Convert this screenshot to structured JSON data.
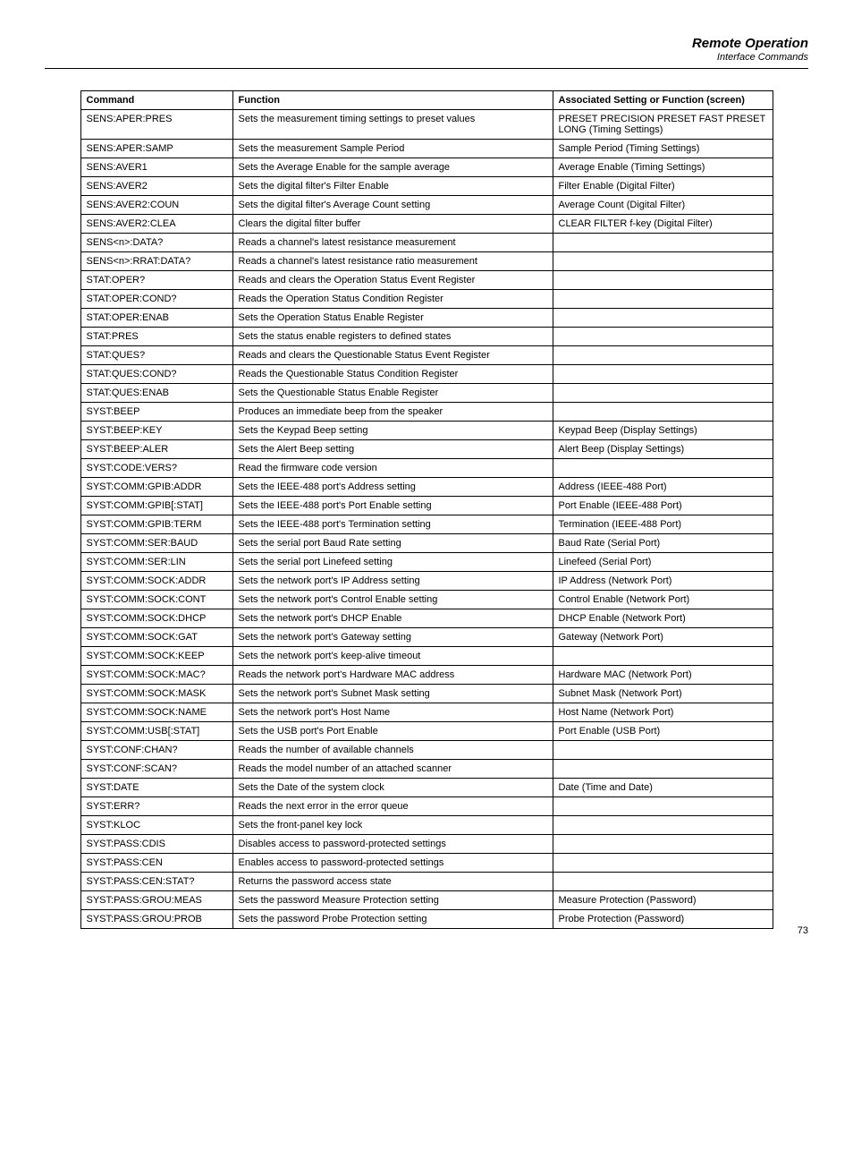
{
  "header": {
    "title": "Remote Operation",
    "subtitle": "Interface Commands"
  },
  "pageNumber": "73",
  "table": {
    "headers": {
      "command": "Command",
      "function": "Function",
      "setting": "Associated Setting or Function (screen)"
    },
    "rows": [
      {
        "command": "SENS:APER:PRES",
        "function": "Sets the measurement timing settings to preset values",
        "setting": "PRESET PRECISION PRESET FAST PRESET LONG (Timing Settings)"
      },
      {
        "command": "SENS:APER:SAMP",
        "function": "Sets the measurement Sample Period",
        "setting": "Sample Period (Timing Settings)"
      },
      {
        "command": "SENS:AVER1",
        "function": "Sets the Average Enable for the sample average",
        "setting": "Average Enable (Timing Settings)"
      },
      {
        "command": "SENS:AVER2",
        "function": "Sets the digital filter's Filter Enable",
        "setting": "Filter Enable (Digital Filter)"
      },
      {
        "command": "SENS:AVER2:COUN",
        "function": "Sets the digital filter's Average Count setting",
        "setting": "Average Count (Digital Filter)"
      },
      {
        "command": "SENS:AVER2:CLEA",
        "function": "Clears the digital filter buffer",
        "setting": "CLEAR FILTER f-key (Digital Filter)"
      },
      {
        "command": "SENS<n>:DATA?",
        "function": "Reads a channel's latest resistance measurement",
        "setting": ""
      },
      {
        "command": "SENS<n>:RRAT:DATA?",
        "function": "Reads a channel's latest resistance ratio measurement",
        "setting": ""
      },
      {
        "command": "STAT:OPER?",
        "function": "Reads and clears the Operation Status Event Register",
        "setting": ""
      },
      {
        "command": "STAT:OPER:COND?",
        "function": "Reads the Operation Status Condition Register",
        "setting": ""
      },
      {
        "command": "STAT:OPER:ENAB",
        "function": "Sets the Operation Status Enable Register",
        "setting": ""
      },
      {
        "command": "STAT:PRES",
        "function": "Sets the status enable registers to defined states",
        "setting": ""
      },
      {
        "command": "STAT:QUES?",
        "function": "Reads and clears the Questionable Status Event Register",
        "setting": ""
      },
      {
        "command": "STAT:QUES:COND?",
        "function": "Reads the Questionable Status Condition Register",
        "setting": ""
      },
      {
        "command": "STAT:QUES:ENAB",
        "function": "Sets the Questionable Status Enable Register",
        "setting": ""
      },
      {
        "command": "SYST:BEEP",
        "function": "Produces an immediate beep from the speaker",
        "setting": ""
      },
      {
        "command": "SYST:BEEP:KEY",
        "function": "Sets the Keypad Beep setting",
        "setting": "Keypad Beep (Display Settings)"
      },
      {
        "command": "SYST:BEEP:ALER",
        "function": "Sets the Alert Beep setting",
        "setting": "Alert Beep (Display Settings)"
      },
      {
        "command": "SYST:CODE:VERS?",
        "function": "Read the firmware code version",
        "setting": ""
      },
      {
        "command": "SYST:COMM:GPIB:ADDR",
        "function": "Sets the IEEE-488 port's Address setting",
        "setting": "Address (IEEE-488 Port)"
      },
      {
        "command": "SYST:COMM:GPIB[:STAT]",
        "function": "Sets the IEEE-488 port's Port Enable setting",
        "setting": "Port Enable (IEEE-488 Port)"
      },
      {
        "command": "SYST:COMM:GPIB:TERM",
        "function": "Sets the IEEE-488 port's Termination setting",
        "setting": "Termination (IEEE-488 Port)"
      },
      {
        "command": "SYST:COMM:SER:BAUD",
        "function": "Sets the serial port Baud Rate setting",
        "setting": "Baud Rate (Serial Port)"
      },
      {
        "command": "SYST:COMM:SER:LIN",
        "function": "Sets the serial port Linefeed setting",
        "setting": "Linefeed (Serial Port)"
      },
      {
        "command": "SYST:COMM:SOCK:ADDR",
        "function": "Sets the network port's IP Address setting",
        "setting": "IP Address (Network Port)"
      },
      {
        "command": "SYST:COMM:SOCK:CONT",
        "function": "Sets the network port's Control Enable setting",
        "setting": "Control Enable (Network Port)"
      },
      {
        "command": "SYST:COMM:SOCK:DHCP",
        "function": "Sets the network port's DHCP Enable",
        "setting": "DHCP Enable (Network Port)"
      },
      {
        "command": "SYST:COMM:SOCK:GAT",
        "function": "Sets the network port's Gateway setting",
        "setting": "Gateway (Network Port)"
      },
      {
        "command": "SYST:COMM:SOCK:KEEP",
        "function": "Sets the network port's keep-alive timeout",
        "setting": ""
      },
      {
        "command": "SYST:COMM:SOCK:MAC?",
        "function": "Reads the network port's Hardware MAC address",
        "setting": "Hardware MAC (Network Port)"
      },
      {
        "command": "SYST:COMM:SOCK:MASK",
        "function": "Sets the network port's Subnet Mask setting",
        "setting": "Subnet Mask (Network Port)"
      },
      {
        "command": "SYST:COMM:SOCK:NAME",
        "function": "Sets the network port's Host Name",
        "setting": "Host Name (Network Port)"
      },
      {
        "command": "SYST:COMM:USB[:STAT]",
        "function": "Sets the USB port's Port Enable",
        "setting": "Port Enable (USB Port)"
      },
      {
        "command": "SYST:CONF:CHAN?",
        "function": "Reads the number of available channels",
        "setting": ""
      },
      {
        "command": "SYST:CONF:SCAN?",
        "function": "Reads the model number of an attached scanner",
        "setting": ""
      },
      {
        "command": "SYST:DATE",
        "function": "Sets the Date of the system clock",
        "setting": "Date (Time and Date)"
      },
      {
        "command": "SYST:ERR?",
        "function": "Reads the next error in the error queue",
        "setting": ""
      },
      {
        "command": "SYST:KLOC",
        "function": "Sets the front-panel key lock",
        "setting": ""
      },
      {
        "command": "SYST:PASS:CDIS",
        "function": "Disables access to password-protected settings",
        "setting": ""
      },
      {
        "command": "SYST:PASS:CEN",
        "function": "Enables access to password-protected settings",
        "setting": ""
      },
      {
        "command": "SYST:PASS:CEN:STAT?",
        "function": "Returns the password access state",
        "setting": ""
      },
      {
        "command": "SYST:PASS:GROU:MEAS",
        "function": "Sets the password Measure Protection setting",
        "setting": "Measure Protection (Password)"
      },
      {
        "command": "SYST:PASS:GROU:PROB",
        "function": "Sets the password Probe Protection setting",
        "setting": "Probe Protection (Password)"
      }
    ]
  }
}
